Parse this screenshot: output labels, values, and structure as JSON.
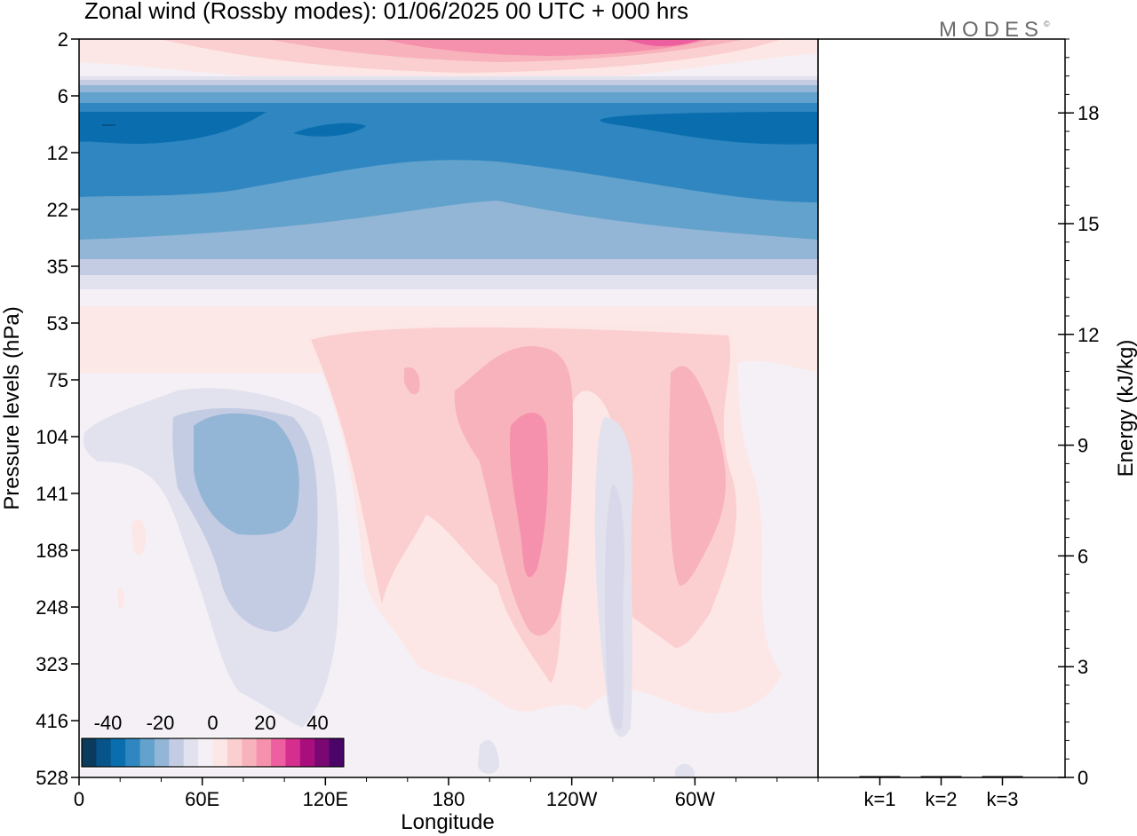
{
  "title": "Zonal wind (Rossby modes):  01/06/2025  00 UTC  + 000 hrs",
  "logo": {
    "text": "MODES",
    "mark": "©"
  },
  "chart_data": [
    {
      "type": "heatmap",
      "field": "Zonal wind (Rossby modes)",
      "xlabel": "Longitude",
      "ylabel": "Pressure levels (hPa)",
      "x_ticks": [
        "0",
        "60E",
        "120E",
        "180",
        "120W",
        "60W"
      ],
      "x_tick_values": [
        0,
        60,
        120,
        180,
        240,
        300
      ],
      "xlim": [
        0,
        360
      ],
      "y_ticks": [
        "2",
        "6",
        "12",
        "22",
        "35",
        "53",
        "75",
        "104",
        "141",
        "188",
        "248",
        "323",
        "416",
        "528"
      ],
      "y_reversed": true,
      "colorbar": {
        "tick_labels": [
          "-40",
          "-20",
          "0",
          "20",
          "40"
        ],
        "range": [
          -50,
          50
        ],
        "colors": [
          "#0a3b5c",
          "#07548a",
          "#0a6eae",
          "#2f86c0",
          "#62a2cc",
          "#93b5d6",
          "#c4cce3",
          "#e2e2ee",
          "#f4f0f5",
          "#fde7e6",
          "#fbcfd0",
          "#f8b2bb",
          "#f591ad",
          "#ee5fa0",
          "#d62e8e",
          "#a80f7c",
          "#7a0873",
          "#4b0468"
        ]
      }
    },
    {
      "type": "bar",
      "categories": [
        "k=1",
        "k=2",
        "k=3"
      ],
      "values": [
        0.03,
        0.02,
        0.02
      ],
      "ylabel": "Energy (kJ/kg)",
      "ylim": [
        0,
        20
      ],
      "y_ticks": [
        "0",
        "3",
        "6",
        "9",
        "12",
        "15",
        "18"
      ]
    }
  ]
}
